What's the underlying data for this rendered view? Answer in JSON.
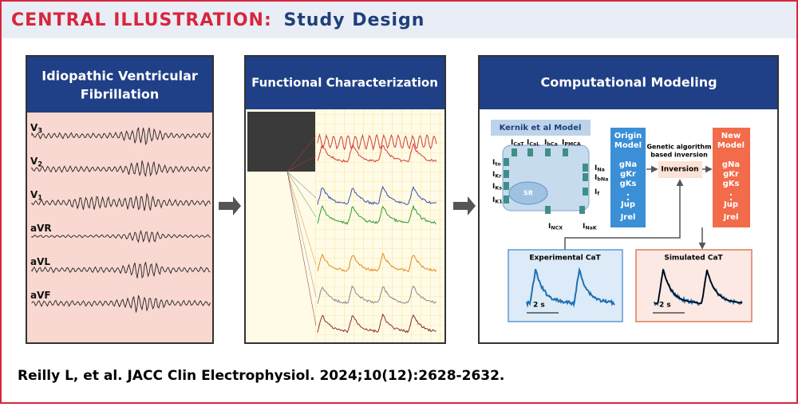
{
  "header": {
    "title_prefix": "CENTRAL ILLUSTRATION:",
    "title": "Study Design"
  },
  "panels": [
    {
      "title": [
        "Idiopathic Ventricular",
        "Fibrillation"
      ],
      "leads": [
        {
          "base": "V",
          "sub": "3"
        },
        {
          "base": "V",
          "sub": "2"
        },
        {
          "base": "V",
          "sub": "1"
        },
        {
          "base": "aVR"
        },
        {
          "base": "aVL"
        },
        {
          "base": "aVF"
        }
      ]
    },
    {
      "title": [
        "Functional Characterization"
      ]
    },
    {
      "title": [
        "Computational Modeling"
      ],
      "model_name": "Kernik et al Model",
      "sr": "SR",
      "currents": [
        {
          "base": "I",
          "sub": "CaT"
        },
        {
          "base": "I",
          "sub": "CaL"
        },
        {
          "base": "I",
          "sub": "bCa"
        },
        {
          "base": "I",
          "sub": "PMCA"
        },
        {
          "base": "I",
          "sub": "to"
        },
        {
          "base": "I",
          "sub": "Kr"
        },
        {
          "base": "I",
          "sub": "Ks"
        },
        {
          "base": "I",
          "sub": "K1"
        },
        {
          "base": "I",
          "sub": "Na"
        },
        {
          "base": "I",
          "sub": "bNa"
        },
        {
          "base": "I",
          "sub": "f"
        },
        {
          "base": "I",
          "sub": "NCX"
        },
        {
          "base": "I",
          "sub": "NaK"
        }
      ],
      "origin_model": [
        "Origin",
        "Model",
        "gNa",
        "gKr",
        "gKs",
        "Jup",
        "Jrel"
      ],
      "algorithm": [
        "Genetic algorithm",
        "based inversion"
      ],
      "inversion": "Inversion",
      "new_model": [
        "New",
        "Model",
        "gNa",
        "gKr",
        "gKs",
        "Jup",
        "Jrel"
      ],
      "experimental": "Experimental CaT",
      "simulated": "Simulated CaT",
      "scale": "2 s"
    }
  ],
  "citation": "Reilly L, et al. JACC Clin Electrophysiol. 2024;10(12):2628-2632."
}
